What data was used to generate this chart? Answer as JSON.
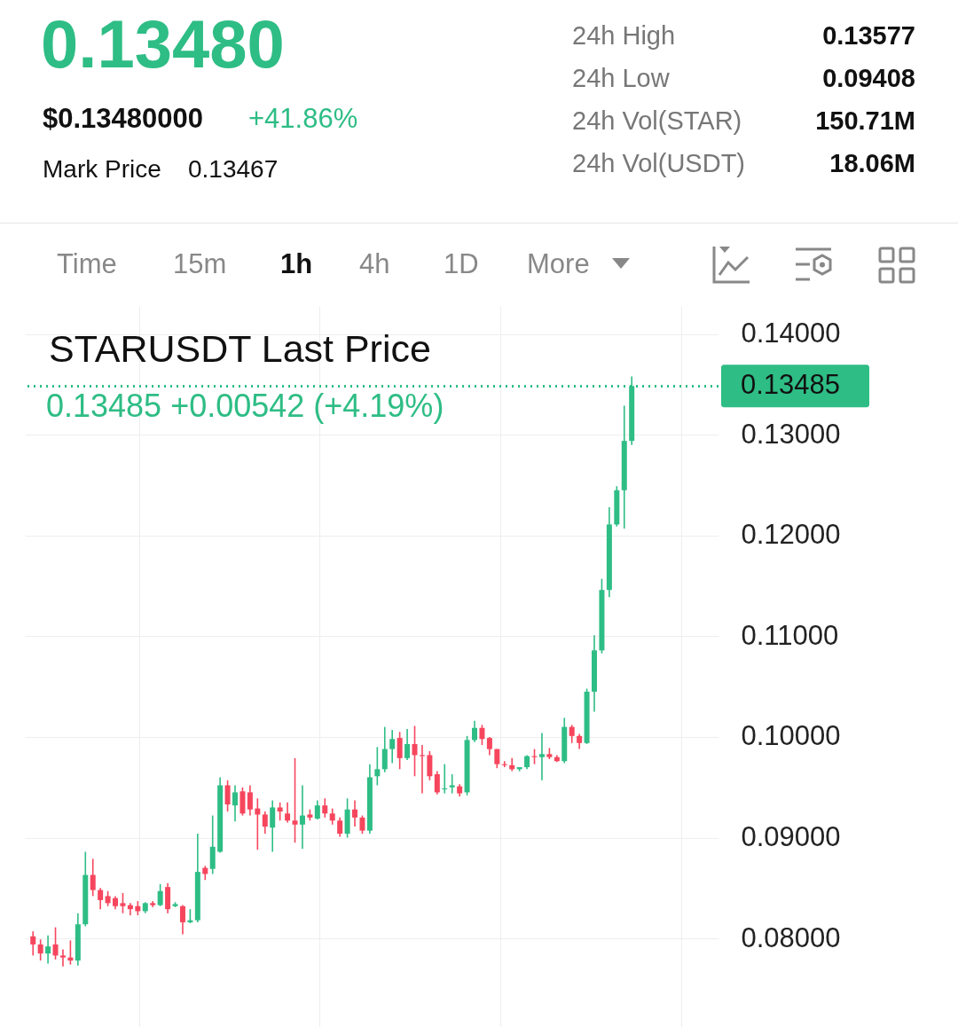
{
  "chart_data": {
    "type": "candlestick",
    "title": "STARUSDT Last Price",
    "subtitle": "0.13485  +0.00542 (+4.19%)",
    "annotations": [
      "0.13480",
      "$0.13480000",
      "+41.86%",
      "Mark Price",
      "0.13467",
      "24h High",
      "0.13577",
      "24h Low",
      "0.09408",
      "24h Vol(STAR)",
      "150.71M",
      "24h Vol(USDT)",
      "18.06M",
      "Time",
      "15m",
      "1h",
      "4h",
      "1D",
      "More"
    ],
    "categories": [
      null,
      null,
      null,
      null,
      null,
      null,
      null,
      null,
      null,
      null,
      null,
      null,
      null,
      null,
      null,
      null,
      null,
      null,
      null,
      null,
      null,
      null,
      null,
      null,
      null,
      null,
      null,
      null,
      null,
      null,
      null,
      null,
      null,
      null,
      null,
      null,
      null,
      null,
      null,
      null,
      null,
      null,
      null,
      null,
      null,
      null,
      null,
      null,
      null,
      null,
      null,
      null,
      null,
      null,
      null,
      null,
      null,
      null,
      null,
      null,
      null,
      null,
      null,
      null,
      null,
      null,
      null,
      null,
      null,
      null,
      null,
      null,
      null,
      null,
      null,
      null,
      null,
      null,
      null,
      null,
      null
    ],
    "ohlc": [
      [
        0.0802,
        0.0807,
        0.0783,
        0.0794
      ],
      [
        0.0794,
        0.0799,
        0.0778,
        0.0785
      ],
      [
        0.0785,
        0.0803,
        0.0775,
        0.0792
      ],
      [
        0.0794,
        0.0811,
        0.0779,
        0.0783
      ],
      [
        0.0783,
        0.0789,
        0.0772,
        0.0781
      ],
      [
        0.0781,
        0.0798,
        0.0774,
        0.0778
      ],
      [
        0.0778,
        0.0825,
        0.0773,
        0.0814
      ],
      [
        0.0814,
        0.0886,
        0.0812,
        0.0863
      ],
      [
        0.0863,
        0.0879,
        0.0842,
        0.0848
      ],
      [
        0.0848,
        0.085,
        0.0829,
        0.0838
      ],
      [
        0.0842,
        0.0847,
        0.0832,
        0.0835
      ],
      [
        0.084,
        0.0842,
        0.0829,
        0.0832
      ],
      [
        0.0835,
        0.0845,
        0.0825,
        0.0832
      ],
      [
        0.0833,
        0.0835,
        0.0823,
        0.0829
      ],
      [
        0.0832,
        0.0837,
        0.0823,
        0.0827
      ],
      [
        0.0827,
        0.0836,
        0.0825,
        0.0835
      ],
      [
        0.0835,
        0.0837,
        0.0831,
        0.0833
      ],
      [
        0.0833,
        0.0854,
        0.0832,
        0.0847
      ],
      [
        0.0851,
        0.0855,
        0.0825,
        0.0829
      ],
      [
        0.0832,
        0.0836,
        0.0831,
        0.0834
      ],
      [
        0.0832,
        0.0833,
        0.0804,
        0.0816
      ],
      [
        0.0816,
        0.0829,
        0.0815,
        0.0818
      ],
      [
        0.0818,
        0.0904,
        0.0816,
        0.0866
      ],
      [
        0.087,
        0.0872,
        0.0858,
        0.0864
      ],
      [
        0.0869,
        0.0922,
        0.0864,
        0.0891
      ],
      [
        0.0886,
        0.096,
        0.0885,
        0.0952
      ],
      [
        0.0952,
        0.0957,
        0.0926,
        0.0933
      ],
      [
        0.0932,
        0.0952,
        0.0916,
        0.0945
      ],
      [
        0.0946,
        0.095,
        0.0922,
        0.0924
      ],
      [
        0.0945,
        0.0952,
        0.0922,
        0.0928
      ],
      [
        0.0929,
        0.0939,
        0.0888,
        0.0923
      ],
      [
        0.0923,
        0.0926,
        0.0904,
        0.0911
      ],
      [
        0.091,
        0.0937,
        0.0886,
        0.093
      ],
      [
        0.093,
        0.0935,
        0.0917,
        0.0926
      ],
      [
        0.0924,
        0.0935,
        0.0915,
        0.0917
      ],
      [
        0.0917,
        0.0979,
        0.0895,
        0.0913
      ],
      [
        0.0913,
        0.0952,
        0.0889,
        0.0922
      ],
      [
        0.0923,
        0.0928,
        0.0917,
        0.092
      ],
      [
        0.0919,
        0.0937,
        0.0918,
        0.0932
      ],
      [
        0.0932,
        0.0939,
        0.092,
        0.0924
      ],
      [
        0.0924,
        0.0929,
        0.0913,
        0.0917
      ],
      [
        0.0917,
        0.092,
        0.0901,
        0.0904
      ],
      [
        0.0904,
        0.0939,
        0.09,
        0.0928
      ],
      [
        0.0928,
        0.0937,
        0.0911,
        0.092
      ],
      [
        0.092,
        0.0922,
        0.0904,
        0.0907
      ],
      [
        0.0907,
        0.0973,
        0.0904,
        0.096
      ],
      [
        0.0961,
        0.099,
        0.0952,
        0.0968
      ],
      [
        0.0968,
        0.101,
        0.0965,
        0.0988
      ],
      [
        0.0988,
        0.1007,
        0.0974,
        0.0998
      ],
      [
        0.0999,
        0.1005,
        0.0968,
        0.0979
      ],
      [
        0.0979,
        0.1008,
        0.0977,
        0.0993
      ],
      [
        0.0993,
        0.1011,
        0.0961,
        0.0982
      ],
      [
        0.0982,
        0.0992,
        0.0944,
        0.0981
      ],
      [
        0.0982,
        0.0986,
        0.0957,
        0.0961
      ],
      [
        0.0963,
        0.0966,
        0.0943,
        0.0945
      ],
      [
        0.0948,
        0.0973,
        0.0944,
        0.0949
      ],
      [
        0.095,
        0.0963,
        0.0944,
        0.0952
      ],
      [
        0.0951,
        0.0953,
        0.0941,
        0.0944
      ],
      [
        0.0945,
        0.1001,
        0.0942,
        0.0997
      ],
      [
        0.0997,
        0.1016,
        0.0995,
        0.1009
      ],
      [
        0.1009,
        0.1012,
        0.0992,
        0.0998
      ],
      [
        0.0999,
        0.1,
        0.0982,
        0.0988
      ],
      [
        0.0988,
        0.0988,
        0.0969,
        0.0973
      ],
      [
        0.0973,
        0.0976,
        0.097,
        0.0972
      ],
      [
        0.0972,
        0.0979,
        0.0966,
        0.0968
      ],
      [
        0.0968,
        0.097,
        0.0966,
        0.097
      ],
      [
        0.097,
        0.0982,
        0.0968,
        0.0981
      ],
      [
        0.0981,
        0.0988,
        0.0973,
        0.098
      ],
      [
        0.098,
        0.1004,
        0.0957,
        0.0983
      ],
      [
        0.0983,
        0.0989,
        0.0978,
        0.098
      ],
      [
        0.098,
        0.0982,
        0.0975,
        0.0976
      ],
      [
        0.0976,
        0.1019,
        0.0974,
        0.101
      ],
      [
        0.101,
        0.1012,
        0.0994,
        0.1001
      ],
      [
        0.1001,
        0.1003,
        0.0988,
        0.0994
      ],
      [
        0.0994,
        0.1048,
        0.0993,
        0.1045
      ],
      [
        0.1045,
        0.1101,
        0.1025,
        0.1086
      ],
      [
        0.1086,
        0.1157,
        0.1083,
        0.1146
      ],
      [
        0.1146,
        0.1228,
        0.1139,
        0.1211
      ],
      [
        0.1211,
        0.1249,
        0.1209,
        0.1245
      ],
      [
        0.1245,
        0.1329,
        0.1207,
        0.1294
      ],
      [
        0.1294,
        0.1358,
        0.129,
        0.13485
      ]
    ],
    "colors": [
      "#f6465d",
      "#f6465d",
      "#2ebd85",
      "#f6465d",
      "#f6465d",
      "#f6465d",
      "#2ebd85",
      "#2ebd85",
      "#f6465d",
      "#f6465d",
      "#f6465d",
      "#f6465d",
      "#f6465d",
      "#f6465d",
      "#f6465d",
      "#2ebd85",
      "#f6465d",
      "#2ebd85",
      "#f6465d",
      "#2ebd85",
      "#f6465d",
      "#2ebd85",
      "#2ebd85",
      "#f6465d",
      "#2ebd85",
      "#2ebd85",
      "#f6465d",
      "#2ebd85",
      "#f6465d",
      "#f6465d",
      "#f6465d",
      "#f6465d",
      "#2ebd85",
      "#f6465d",
      "#f6465d",
      "#f6465d",
      "#2ebd85",
      "#f6465d",
      "#2ebd85",
      "#f6465d",
      "#f6465d",
      "#f6465d",
      "#2ebd85",
      "#f6465d",
      "#f6465d",
      "#2ebd85",
      "#2ebd85",
      "#2ebd85",
      "#2ebd85",
      "#f6465d",
      "#2ebd85",
      "#f6465d",
      "#f6465d",
      "#f6465d",
      "#f6465d",
      "#2ebd85",
      "#2ebd85",
      "#f6465d",
      "#2ebd85",
      "#2ebd85",
      "#f6465d",
      "#f6465d",
      "#f6465d",
      "#f6465d",
      "#f6465d",
      "#2ebd85",
      "#2ebd85",
      "#f6465d",
      "#2ebd85",
      "#f6465d",
      "#f6465d",
      "#2ebd85",
      "#f6465d",
      "#f6465d",
      "#2ebd85",
      "#2ebd85",
      "#2ebd85",
      "#2ebd85",
      "#2ebd85",
      "#2ebd85",
      "#2ebd85"
    ],
    "ylim": [
      0.0712,
      0.1428
    ],
    "yticks": [
      {
        "value": 0.08,
        "label": "0.08000"
      },
      {
        "value": 0.09,
        "label": "0.09000"
      },
      {
        "value": 0.1,
        "label": "0.10000"
      },
      {
        "value": 0.11,
        "label": "0.11000"
      },
      {
        "value": 0.12,
        "label": "0.12000"
      },
      {
        "value": 0.13,
        "label": "0.13000"
      },
      {
        "value": 0.14,
        "label": "0.14000"
      }
    ],
    "ref_lines": [
      {
        "axis": "y",
        "value": 0.13485,
        "label": "0.13485",
        "color": "#2ebd85",
        "line_style": "dotted"
      }
    ],
    "grid": true,
    "tick_labels": "y"
  }
}
